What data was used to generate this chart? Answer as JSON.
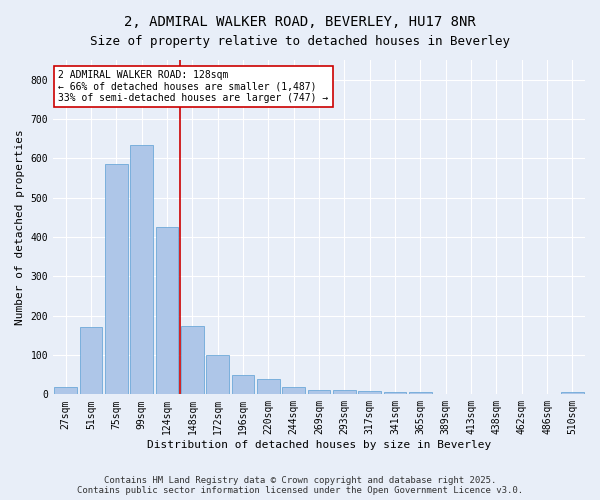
{
  "title1": "2, ADMIRAL WALKER ROAD, BEVERLEY, HU17 8NR",
  "title2": "Size of property relative to detached houses in Beverley",
  "xlabel": "Distribution of detached houses by size in Beverley",
  "ylabel": "Number of detached properties",
  "bar_labels": [
    "27sqm",
    "51sqm",
    "75sqm",
    "99sqm",
    "124sqm",
    "148sqm",
    "172sqm",
    "196sqm",
    "220sqm",
    "244sqm",
    "269sqm",
    "293sqm",
    "317sqm",
    "341sqm",
    "365sqm",
    "389sqm",
    "413sqm",
    "438sqm",
    "462sqm",
    "486sqm",
    "510sqm"
  ],
  "bar_values": [
    18,
    170,
    585,
    635,
    425,
    175,
    100,
    50,
    40,
    18,
    12,
    10,
    8,
    7,
    6,
    0,
    0,
    0,
    0,
    0,
    5
  ],
  "bar_color": "#aec6e8",
  "bar_edge_color": "#5a9fd4",
  "vline_color": "#cc0000",
  "annotation_text": "2 ADMIRAL WALKER ROAD: 128sqm\n← 66% of detached houses are smaller (1,487)\n33% of semi-detached houses are larger (747) →",
  "annotation_box_color": "#ffffff",
  "annotation_edge_color": "#cc0000",
  "ylim": [
    0,
    850
  ],
  "yticks": [
    0,
    100,
    200,
    300,
    400,
    500,
    600,
    700,
    800
  ],
  "footer_text": "Contains HM Land Registry data © Crown copyright and database right 2025.\nContains public sector information licensed under the Open Government Licence v3.0.",
  "bg_color": "#e8eef8",
  "plot_bg_color": "#e8eef8",
  "grid_color": "#ffffff",
  "title_fontsize": 10,
  "subtitle_fontsize": 9,
  "axis_label_fontsize": 8,
  "tick_fontsize": 7,
  "annotation_fontsize": 7,
  "footer_fontsize": 6.5
}
